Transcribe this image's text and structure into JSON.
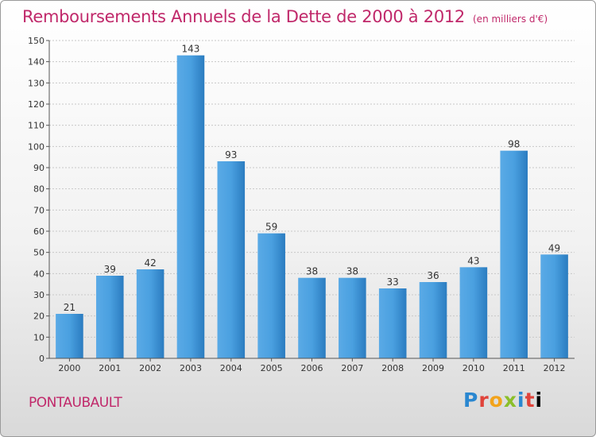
{
  "title": "Remboursements Annuels de la Dette de 2000 à 2012",
  "unit_note": "(en milliers d'€)",
  "commune": "PONTAUBAULT",
  "brand": [
    "P",
    "r",
    "o",
    "x",
    "i",
    "t",
    "i"
  ],
  "chart_data": {
    "type": "bar",
    "categories": [
      "2000",
      "2001",
      "2002",
      "2003",
      "2004",
      "2005",
      "2006",
      "2007",
      "2008",
      "2009",
      "2010",
      "2011",
      "2012"
    ],
    "values": [
      21,
      39,
      42,
      143,
      93,
      59,
      38,
      38,
      33,
      36,
      43,
      98,
      49
    ],
    "ylim": [
      0,
      150
    ],
    "yticks": [
      0,
      10,
      20,
      30,
      40,
      50,
      60,
      70,
      80,
      90,
      100,
      110,
      120,
      130,
      140,
      150
    ],
    "grid": true,
    "bar_color": "#3d93d6"
  }
}
